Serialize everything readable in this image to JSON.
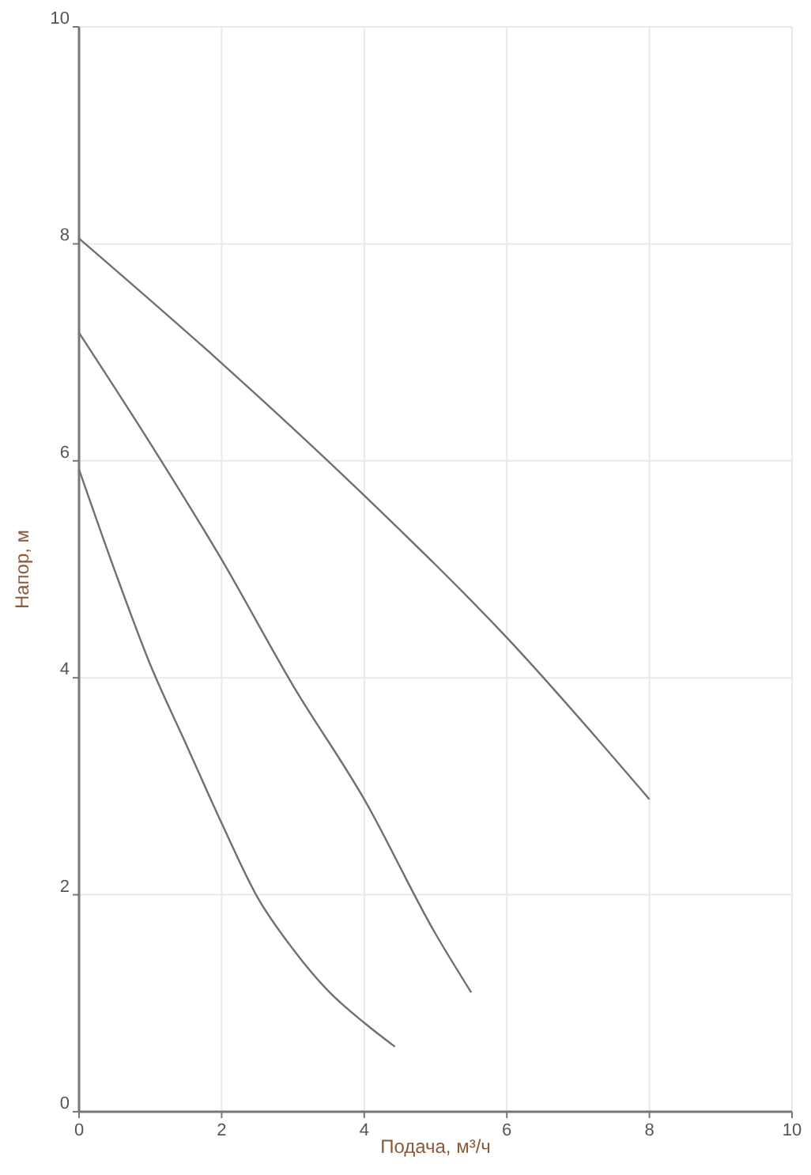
{
  "chart_data": {
    "type": "line",
    "xlabel": "Подача, м³/ч",
    "ylabel": "Напор, м",
    "xlim": [
      0,
      10
    ],
    "ylim": [
      0,
      10
    ],
    "xticks": [
      0,
      2,
      4,
      6,
      8,
      10
    ],
    "yticks": [
      0,
      2,
      4,
      6,
      8,
      10
    ],
    "grid": true,
    "marker": "none",
    "line_style": "solid",
    "series": [
      {
        "color": "#707070",
        "x": [
          0,
          2,
          4,
          6,
          8
        ],
        "values": [
          8.05,
          6.9,
          5.68,
          4.37,
          2.88
        ]
      },
      {
        "color": "#707070",
        "x": [
          0,
          1,
          2,
          3,
          4,
          5,
          5.5
        ],
        "values": [
          7.18,
          6.16,
          5.09,
          3.93,
          2.88,
          1.64,
          1.1
        ]
      },
      {
        "color": "#707070",
        "x": [
          0,
          0.5,
          1,
          1.5,
          2,
          2.5,
          3,
          3.5,
          4,
          4.43
        ],
        "values": [
          5.92,
          4.99,
          4.12,
          3.39,
          2.66,
          1.98,
          1.5,
          1.11,
          0.82,
          0.6
        ]
      }
    ]
  }
}
